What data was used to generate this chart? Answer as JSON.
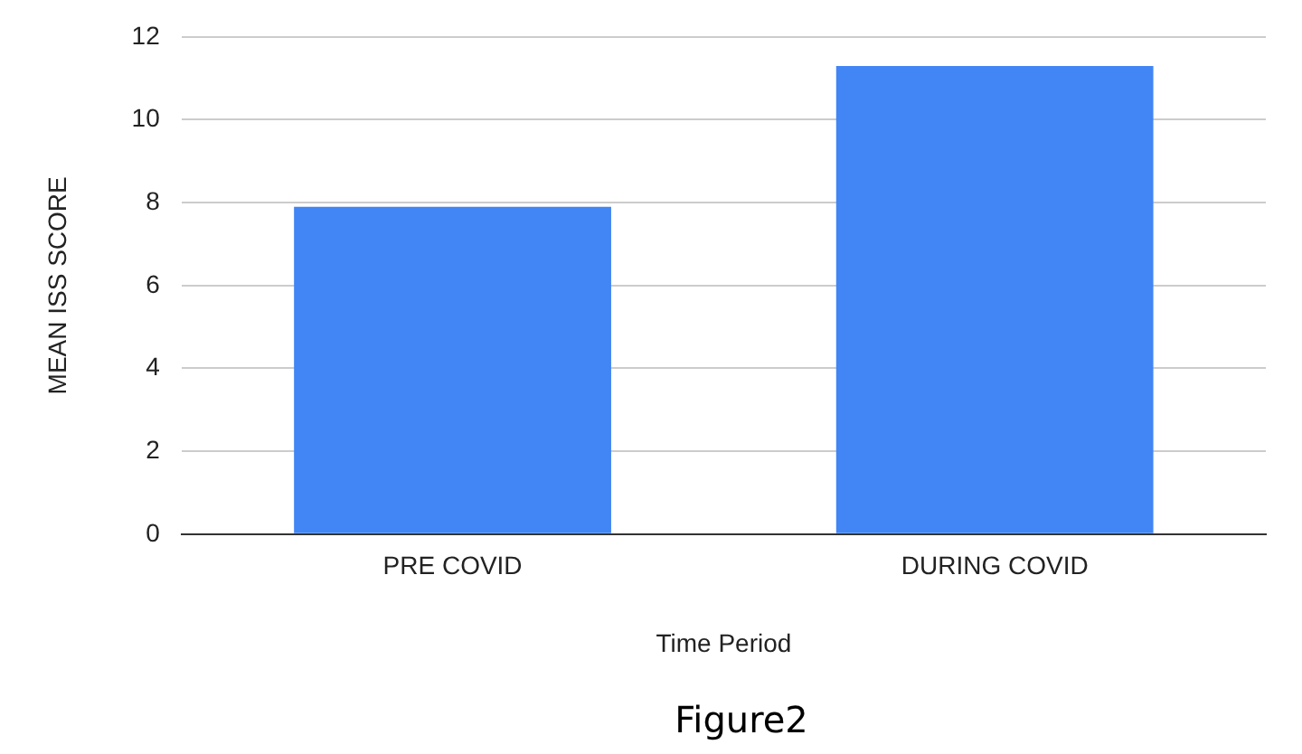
{
  "chart_data": {
    "type": "bar",
    "categories": [
      "PRE COVID",
      "DURING COVID"
    ],
    "values": [
      7.9,
      11.3
    ],
    "color": "#4285f4",
    "xlabel": "Time Period",
    "ylabel": "MEAN ISS SCORE",
    "ylim": [
      0,
      12
    ],
    "yticks": [
      0,
      2,
      4,
      6,
      8,
      10,
      12
    ],
    "grid": "y",
    "annotations": [
      "Figure2"
    ]
  }
}
